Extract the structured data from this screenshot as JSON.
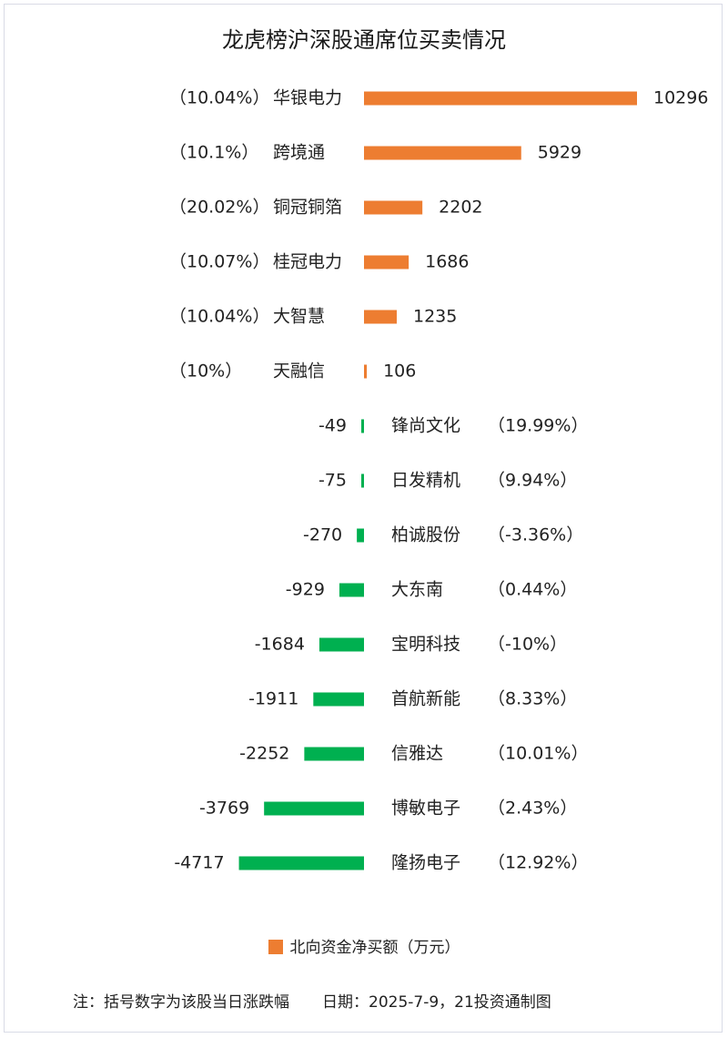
{
  "chart_data": {
    "type": "bar",
    "title": "龙虎榜沪深股通席位买卖情况",
    "categories": [
      "华银电力",
      "跨境通",
      "铜冠铜箔",
      "桂冠电力",
      "大智慧",
      "天融信",
      "锋尚文化",
      "日发精机",
      "柏诚股份",
      "大东南",
      "宝明科技",
      "首航新能",
      "信雅达",
      "博敏电子",
      "隆扬电子"
    ],
    "series": [
      {
        "name": "北向资金净买额（万元）",
        "values": [
          10296,
          5929,
          2202,
          1686,
          1235,
          106,
          -49,
          -75,
          -270,
          -929,
          -1684,
          -1911,
          -2252,
          -3769,
          -4717
        ],
        "value_labels": [
          "10296",
          "5929",
          "2202",
          "1686",
          "1235",
          "106",
          "-49",
          "-75",
          "-270",
          "-929",
          "-1684",
          "-1911",
          "-2252",
          "-3769",
          "-4717"
        ]
      }
    ],
    "pct_labels": [
      "（10.04%）",
      "（10.1%）",
      "（20.02%）",
      "（10.07%）",
      "（10.04%）",
      "（10%）",
      "（19.99%）",
      "（9.94%）",
      "（-3.36%）",
      "（0.44%）",
      "（-10%）",
      "（8.33%）",
      "（10.01%）",
      "（2.43%）",
      "（12.92%）"
    ],
    "colors": {
      "positive": "#ed7d31",
      "negative": "#00b050"
    },
    "legend": "bottom-center",
    "grid": false
  },
  "footer": {
    "note": "注：括号数字为该股当日涨跌幅",
    "date": "日期：2025-7-9，21投资通制图"
  }
}
